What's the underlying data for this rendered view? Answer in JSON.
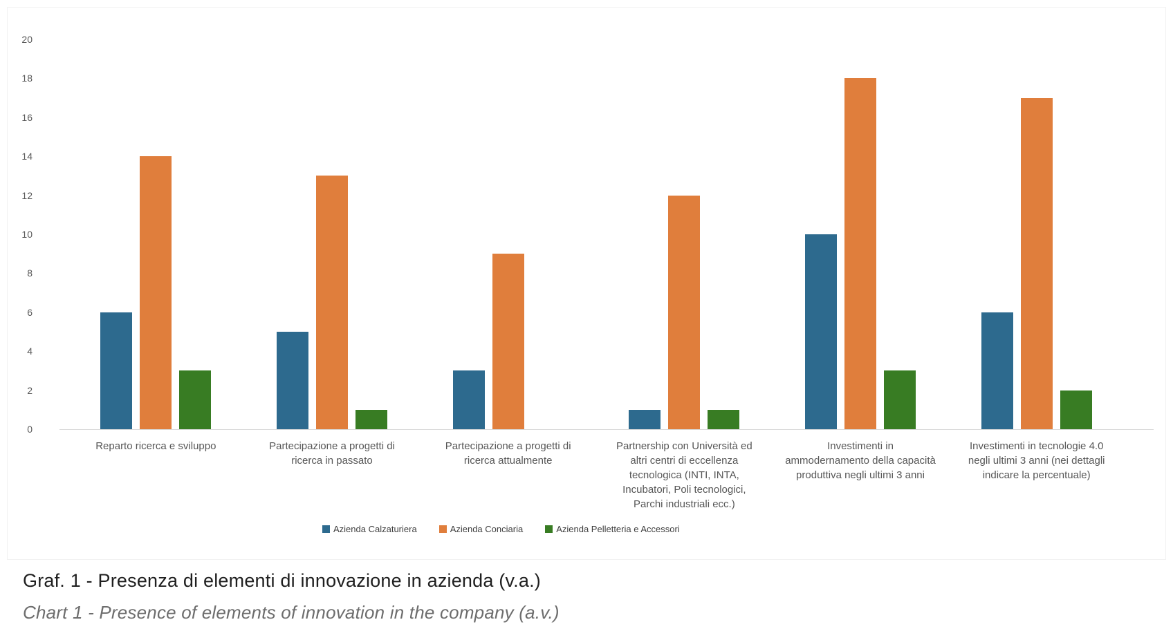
{
  "page": {
    "captions": {
      "title": "Graf. 1 - Presenza di elementi di innovazione in azienda (v.a.)",
      "subtitle": "Chart 1 - Presence of elements of innovation in the company (a.v.)"
    }
  },
  "chart_data": {
    "type": "bar",
    "title": "",
    "xlabel": "",
    "ylabel": "",
    "ylim": [
      0,
      20
    ],
    "yticks": [
      0,
      2,
      4,
      6,
      8,
      10,
      12,
      14,
      16,
      18,
      20
    ],
    "grid": false,
    "legend_position": "bottom",
    "axis_line_color": "#d9d9d9",
    "tick_label_color": "#595959",
    "categories": [
      "Reparto ricerca e sviluppo",
      "Partecipazione a progetti di\nricerca in passato",
      "Partecipazione a progetti di\nricerca attualmente",
      "Partnership con Università ed\naltri centri di eccellenza\ntecnologica (INTI, INTA,\nIncubatori, Poli tecnologici,\nParchi industriali ecc.)",
      "Investimenti in\nammodernamento della capacità\nproduttiva negli ultimi 3 anni",
      "Investimenti in tecnologie 4.0\nnegli ultimi 3 anni (nei dettagli\nindicare la percentuale)"
    ],
    "series": [
      {
        "name": "Azienda Calzaturiera",
        "color": "#2D6A8E",
        "values": [
          6,
          5,
          3,
          1,
          10,
          6
        ]
      },
      {
        "name": "Azienda Conciaria",
        "color": "#E07E3C",
        "values": [
          14,
          13,
          9,
          12,
          18,
          17
        ]
      },
      {
        "name": "Azienda Pelletteria e Accessori",
        "color": "#387C23",
        "values": [
          3,
          1,
          0,
          1,
          3,
          2
        ]
      }
    ]
  }
}
